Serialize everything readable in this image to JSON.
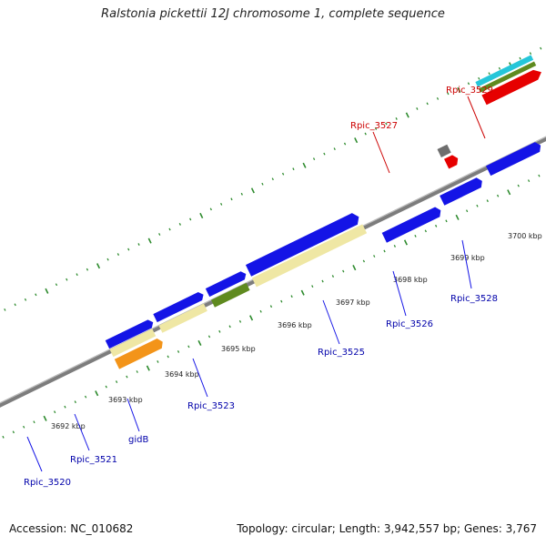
{
  "title": "Ralstonia pickettii 12J chromosome 1, complete sequence",
  "footer": {
    "accession": "Accession: NC_010682",
    "summary": "Topology: circular; Length: 3,942,557 bp; Genes: 3,767"
  },
  "ticks": [
    "3692 kbp",
    "3693 kbp",
    "3694 kbp",
    "3695 kbp",
    "3696 kbp",
    "3697 kbp",
    "3698 kbp",
    "3699 kbp",
    "3700 kbp"
  ],
  "genes": [
    {
      "label": "Rpic_3520",
      "color": "#0000aa"
    },
    {
      "label": "Rpic_3521",
      "color": "#0000aa"
    },
    {
      "label": "gidB",
      "color": "#0000aa"
    },
    {
      "label": "Rpic_3523",
      "color": "#0000aa"
    },
    {
      "label": "Rpic_3525",
      "color": "#0000aa"
    },
    {
      "label": "Rpic_3526",
      "color": "#0000aa"
    },
    {
      "label": "Rpic_3528",
      "color": "#0000aa"
    },
    {
      "label": "Rpic_3527",
      "color": "#cc0000"
    },
    {
      "label": "Rpic_3529",
      "color": "#cc0000"
    }
  ],
  "colors": {
    "blue": "#1414e6",
    "yellow": "#efe7a4",
    "green": "#5f8a1f",
    "orange": "#f39419",
    "red": "#e60000",
    "cyan": "#25c6d9",
    "gray": "#707070",
    "lightgray": "#c8c8c8",
    "backbone": "#8c8c8c",
    "tick": "#2e8b2e"
  }
}
